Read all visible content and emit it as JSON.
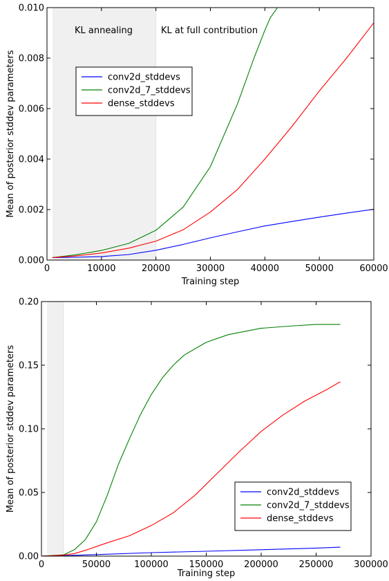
{
  "chart_data": [
    {
      "type": "line",
      "xlabel": "Training step",
      "ylabel": "Mean of posterior stddev parameters",
      "xlim": [
        0,
        60000
      ],
      "ylim": [
        0,
        0.01
      ],
      "xticks": [
        0,
        10000,
        20000,
        30000,
        40000,
        50000,
        60000
      ],
      "xtick_labels": [
        "0",
        "10000",
        "20000",
        "30000",
        "40000",
        "50000",
        "60000"
      ],
      "yticks": [
        0,
        0.002,
        0.004,
        0.006,
        0.008,
        0.01
      ],
      "ytick_labels": [
        "0.000",
        "0.002",
        "0.004",
        "0.006",
        "0.008",
        "0.010"
      ],
      "grid": false,
      "legend_placement": "upper-left",
      "shaded_region": {
        "x": [
          1000,
          20000
        ],
        "color": "#f0f0f0"
      },
      "annotations": [
        "KL annealing",
        "KL at full contribution"
      ],
      "series": [
        {
          "name": "conv2d_stddevs",
          "color": "#0000ff",
          "x": [
            1000,
            5000,
            10000,
            15000,
            20000,
            25000,
            30000,
            35000,
            40000,
            45000,
            50000,
            55000,
            60000
          ],
          "y": [
            0.0001,
            0.00011,
            0.00014,
            0.00022,
            0.00039,
            0.00062,
            0.00088,
            0.00112,
            0.00135,
            0.00153,
            0.0017,
            0.00186,
            0.00201
          ]
        },
        {
          "name": "conv2d_7_stddevs",
          "color": "#008000",
          "x": [
            1000,
            5000,
            10000,
            15000,
            20000,
            25000,
            30000,
            35000,
            38000,
            40000,
            41000,
            42000,
            42300
          ],
          "y": [
            0.0001,
            0.0002,
            0.00038,
            0.00066,
            0.00118,
            0.0021,
            0.0037,
            0.0062,
            0.008,
            0.0091,
            0.0096,
            0.0099,
            0.01
          ]
        },
        {
          "name": "dense_stddevs",
          "color": "#ff0000",
          "x": [
            1000,
            5000,
            10000,
            15000,
            20000,
            25000,
            30000,
            35000,
            40000,
            45000,
            50000,
            55000,
            60000
          ],
          "y": [
            0.0001,
            0.00016,
            0.00028,
            0.00047,
            0.00075,
            0.0012,
            0.0019,
            0.0028,
            0.004,
            0.0053,
            0.0067,
            0.008,
            0.0094
          ]
        }
      ]
    },
    {
      "type": "line",
      "xlabel": "Training step",
      "ylabel": "Mean of posterior stddev parameters",
      "xlim": [
        0,
        300000
      ],
      "ylim": [
        0,
        0.2
      ],
      "xticks": [
        0,
        50000,
        100000,
        150000,
        200000,
        250000,
        300000
      ],
      "xtick_labels": [
        "0",
        "50000",
        "100000",
        "150000",
        "200000",
        "250000",
        "300000"
      ],
      "yticks": [
        0,
        0.05,
        0.1,
        0.15,
        0.2
      ],
      "ytick_labels": [
        "0.00",
        "0.05",
        "0.10",
        "0.15",
        "0.20"
      ],
      "grid": false,
      "legend_placement": "lower-right",
      "shaded_region": {
        "x": [
          5000,
          20000
        ],
        "color": "#f0f0f0"
      },
      "series": [
        {
          "name": "conv2d_stddevs",
          "color": "#0000ff",
          "x": [
            0,
            20000,
            50000,
            100000,
            150000,
            200000,
            250000,
            272000
          ],
          "y": [
            0,
            0.0003,
            0.0012,
            0.0027,
            0.0038,
            0.005,
            0.0063,
            0.007
          ]
        },
        {
          "name": "conv2d_7_stddevs",
          "color": "#008000",
          "x": [
            0,
            20000,
            30000,
            40000,
            50000,
            60000,
            70000,
            80000,
            90000,
            100000,
            110000,
            120000,
            130000,
            150000,
            170000,
            200000,
            230000,
            250000,
            272000
          ],
          "y": [
            0,
            0.001,
            0.005,
            0.013,
            0.027,
            0.048,
            0.072,
            0.092,
            0.111,
            0.127,
            0.14,
            0.15,
            0.158,
            0.168,
            0.174,
            0.179,
            0.181,
            0.182,
            0.182
          ]
        },
        {
          "name": "dense_stddevs",
          "color": "#ff0000",
          "x": [
            0,
            20000,
            30000,
            40000,
            50000,
            60000,
            80000,
            100000,
            120000,
            140000,
            160000,
            180000,
            200000,
            220000,
            240000,
            260000,
            272000
          ],
          "y": [
            0,
            0.0007,
            0.002,
            0.0045,
            0.0075,
            0.0105,
            0.016,
            0.024,
            0.034,
            0.048,
            0.065,
            0.082,
            0.098,
            0.111,
            0.122,
            0.131,
            0.137
          ]
        }
      ]
    }
  ]
}
